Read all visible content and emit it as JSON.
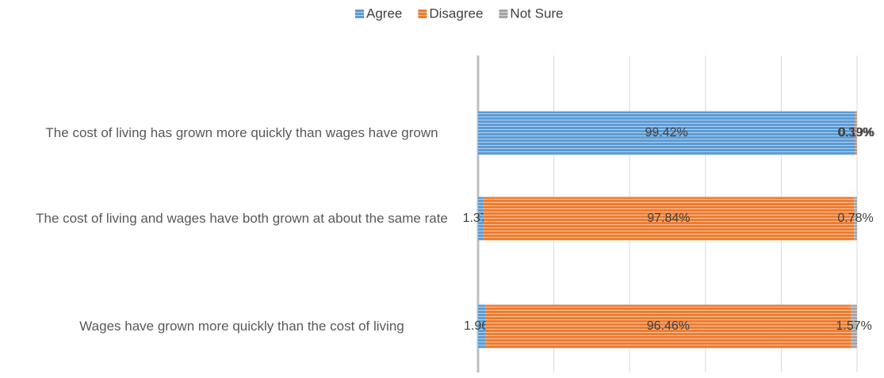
{
  "chart_data": {
    "type": "stacked_bar_horizontal",
    "categories": [
      "The cost of living has grown more quickly than wages have grown",
      "The cost of living and wages have both grown at about the same rate",
      "Wages have grown more quickly than the cost of living"
    ],
    "series": [
      {
        "name": "Agree",
        "color": "#5b9bd5",
        "values": [
          99.42,
          1.37,
          1.96
        ],
        "value_labels": [
          "99.42%",
          "1.37%",
          "1.96%"
        ]
      },
      {
        "name": "Disagree",
        "color": "#ed7d31",
        "values": [
          0.39,
          97.84,
          96.46
        ],
        "value_labels": [
          "0.39%",
          "97.84%",
          "96.46%"
        ]
      },
      {
        "name": "Not Sure",
        "color": "#a5a5a5",
        "values": [
          0.19,
          0.78,
          1.57
        ],
        "value_labels": [
          "0.19%",
          "0.78%",
          "1.57%"
        ]
      }
    ],
    "xlim": [
      0,
      100
    ],
    "xticks": [
      0,
      20,
      40,
      60,
      80,
      100
    ],
    "grid": true,
    "legend": "top"
  }
}
